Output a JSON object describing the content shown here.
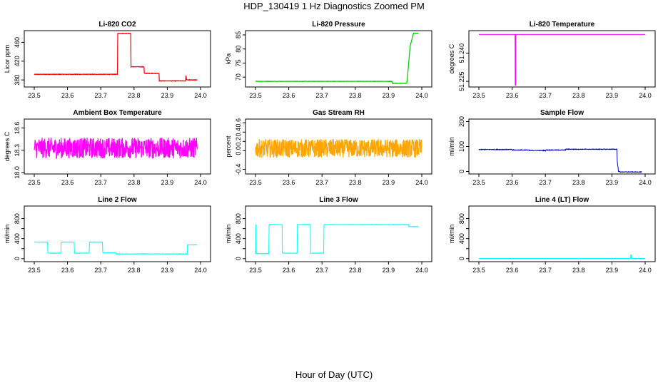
{
  "figure": {
    "title": "HDP_130419  1 Hz Diagnostics Zoomed PM",
    "xlabel": "Hour of Day (UTC)"
  },
  "chart_data": [
    {
      "type": "line",
      "title": "Li-820 CO2",
      "ylabel": "Licor ppm",
      "color": "#ff0000",
      "xlim": [
        23.5,
        24.0
      ],
      "ylim": [
        365,
        485
      ],
      "xticks": [
        "23.5",
        "23.6",
        "23.7",
        "23.8",
        "23.9",
        "24.0"
      ],
      "yticks": [
        380,
        420,
        460
      ],
      "yticklabels": [
        "380",
        "420",
        "460"
      ],
      "noise": 0.5,
      "x": [
        23.5,
        23.75,
        23.751,
        23.79,
        23.791,
        23.83,
        23.831,
        23.875,
        23.876,
        23.955,
        23.956,
        23.958,
        23.96,
        23.99
      ],
      "y": [
        392,
        392,
        479,
        479,
        408,
        408,
        394,
        394,
        378,
        378,
        389,
        381,
        380,
        380
      ]
    },
    {
      "type": "line",
      "title": "Li-820 Pressure",
      "ylabel": "kPa",
      "color": "#00c000",
      "xlim": [
        23.5,
        24.0
      ],
      "ylim": [
        66.5,
        86.5
      ],
      "xticks": [
        "23.5",
        "23.6",
        "23.7",
        "23.8",
        "23.9",
        "24.0"
      ],
      "yticks": [
        70,
        75,
        80,
        85
      ],
      "yticklabels": [
        "70",
        "75",
        "80",
        "85"
      ],
      "noise": 0.05,
      "x": [
        23.5,
        23.91,
        23.912,
        23.955,
        23.96,
        23.965,
        23.975,
        23.99
      ],
      "y": [
        68.5,
        68.5,
        67.8,
        67.8,
        74,
        81,
        85.6,
        85.6
      ]
    },
    {
      "type": "line",
      "title": "Li-820 Temperature",
      "ylabel": "degrees C",
      "color": "#ff00ff",
      "xlim": [
        23.5,
        24.0
      ],
      "ylim": [
        51.222,
        51.252
      ],
      "xticks": [
        "23.5",
        "23.6",
        "23.7",
        "23.8",
        "23.9",
        "24.0"
      ],
      "yticks": [
        51.225,
        51.24
      ],
      "yticklabels": [
        "51.225",
        "51.240"
      ],
      "noise": 0,
      "x": [
        23.5,
        23.609,
        23.6095,
        23.6105,
        23.611,
        24.0
      ],
      "y": [
        51.25,
        51.25,
        51.223,
        51.223,
        51.25,
        51.25
      ]
    },
    {
      "type": "line",
      "title": "Ambient Box Temperature",
      "ylabel": "degrees C",
      "color": "#ff00ff",
      "xlim": [
        23.5,
        24.0
      ],
      "ylim": [
        17.98,
        18.72
      ],
      "xticks": [
        "23.5",
        "23.6",
        "23.7",
        "23.8",
        "23.9",
        "24.0"
      ],
      "yticks": [
        18.0,
        18.3,
        18.6
      ],
      "yticklabels": [
        "18.0",
        "18.3",
        "18.6"
      ],
      "noise": 0.14,
      "x": [
        23.5,
        23.99
      ],
      "y": [
        18.33,
        18.33
      ]
    },
    {
      "type": "line",
      "title": "Gas Stream RH",
      "ylabel": "percent",
      "color": "#ffa500",
      "xlim": [
        23.5,
        24.0
      ],
      "ylim": [
        -0.5,
        0.68
      ],
      "xticks": [
        "23.5",
        "23.6",
        "23.7",
        "23.8",
        "23.9",
        "24.0"
      ],
      "yticks": [
        -0.4,
        0.0,
        0.2,
        0.4,
        0.6
      ],
      "yticklabels": [
        "-0.4",
        "0.0",
        "0.2",
        "0.4",
        "0.6"
      ],
      "noise": 0.2,
      "x": [
        23.5,
        24.0
      ],
      "y": [
        0.05,
        0.05
      ]
    },
    {
      "type": "line",
      "title": "Sample Flow",
      "ylabel": "ml/min",
      "color": "#0000cc",
      "xlim": [
        23.5,
        24.0
      ],
      "ylim": [
        -10,
        210
      ],
      "xticks": [
        "23.5",
        "23.6",
        "23.7",
        "23.8",
        "23.9",
        "24.0"
      ],
      "yticks": [
        0,
        100,
        200
      ],
      "yticklabels": [
        "0",
        "100",
        "200"
      ],
      "noise": 1.2,
      "x": [
        23.5,
        23.6,
        23.601,
        23.65,
        23.651,
        23.7,
        23.701,
        23.76,
        23.761,
        23.915,
        23.916,
        23.92,
        23.925,
        23.99
      ],
      "y": [
        88,
        88,
        86,
        86,
        84,
        84,
        86,
        86,
        89,
        89,
        40,
        0,
        -2,
        -2
      ]
    },
    {
      "type": "line",
      "title": "Line 2 Flow",
      "ylabel": "ml/min",
      "color": "#00ffff",
      "xlim": [
        23.5,
        24.0
      ],
      "ylim": [
        -60,
        1050
      ],
      "xticks": [
        "23.5",
        "23.6",
        "23.7",
        "23.8",
        "23.9",
        "24.0"
      ],
      "yticks": [
        0,
        200,
        400,
        600,
        800
      ],
      "yticklabels": [
        "0",
        "400",
        "800"
      ],
      "noise": 4,
      "x": [
        23.5,
        23.54,
        23.541,
        23.58,
        23.581,
        23.62,
        23.621,
        23.665,
        23.666,
        23.705,
        23.706,
        23.745,
        23.746,
        23.96,
        23.961,
        23.99
      ],
      "y": [
        330,
        330,
        110,
        110,
        330,
        330,
        110,
        110,
        330,
        330,
        120,
        120,
        95,
        95,
        275,
        275
      ]
    },
    {
      "type": "line",
      "title": "Line 3 Flow",
      "ylabel": "ml/min",
      "color": "#00ffff",
      "xlim": [
        23.5,
        24.0
      ],
      "ylim": [
        -60,
        1050
      ],
      "xticks": [
        "23.5",
        "23.6",
        "23.7",
        "23.8",
        "23.9",
        "24.0"
      ],
      "yticks": [
        0,
        200,
        400,
        600,
        800
      ],
      "yticklabels": [
        "0",
        "400",
        "800"
      ],
      "noise": 4,
      "x": [
        23.5,
        23.501,
        23.502,
        23.54,
        23.541,
        23.58,
        23.581,
        23.625,
        23.626,
        23.665,
        23.666,
        23.705,
        23.706,
        23.96,
        23.961,
        23.99
      ],
      "y": [
        100,
        680,
        100,
        100,
        680,
        680,
        110,
        110,
        680,
        680,
        110,
        110,
        680,
        680,
        640,
        640
      ]
    },
    {
      "type": "line",
      "title": "Line 4 (LT) Flow",
      "ylabel": "ml/min",
      "color": "#00ffff",
      "xlim": [
        23.5,
        24.0
      ],
      "ylim": [
        -60,
        1050
      ],
      "xticks": [
        "23.5",
        "23.6",
        "23.7",
        "23.8",
        "23.9",
        "24.0"
      ],
      "yticks": [
        0,
        200,
        400,
        600,
        800
      ],
      "yticklabels": [
        "0",
        "400",
        "800"
      ],
      "noise": 0,
      "x": [
        23.5,
        23.956,
        23.957,
        23.958,
        23.959,
        24.0
      ],
      "y": [
        3,
        3,
        75,
        75,
        3,
        3
      ]
    }
  ]
}
